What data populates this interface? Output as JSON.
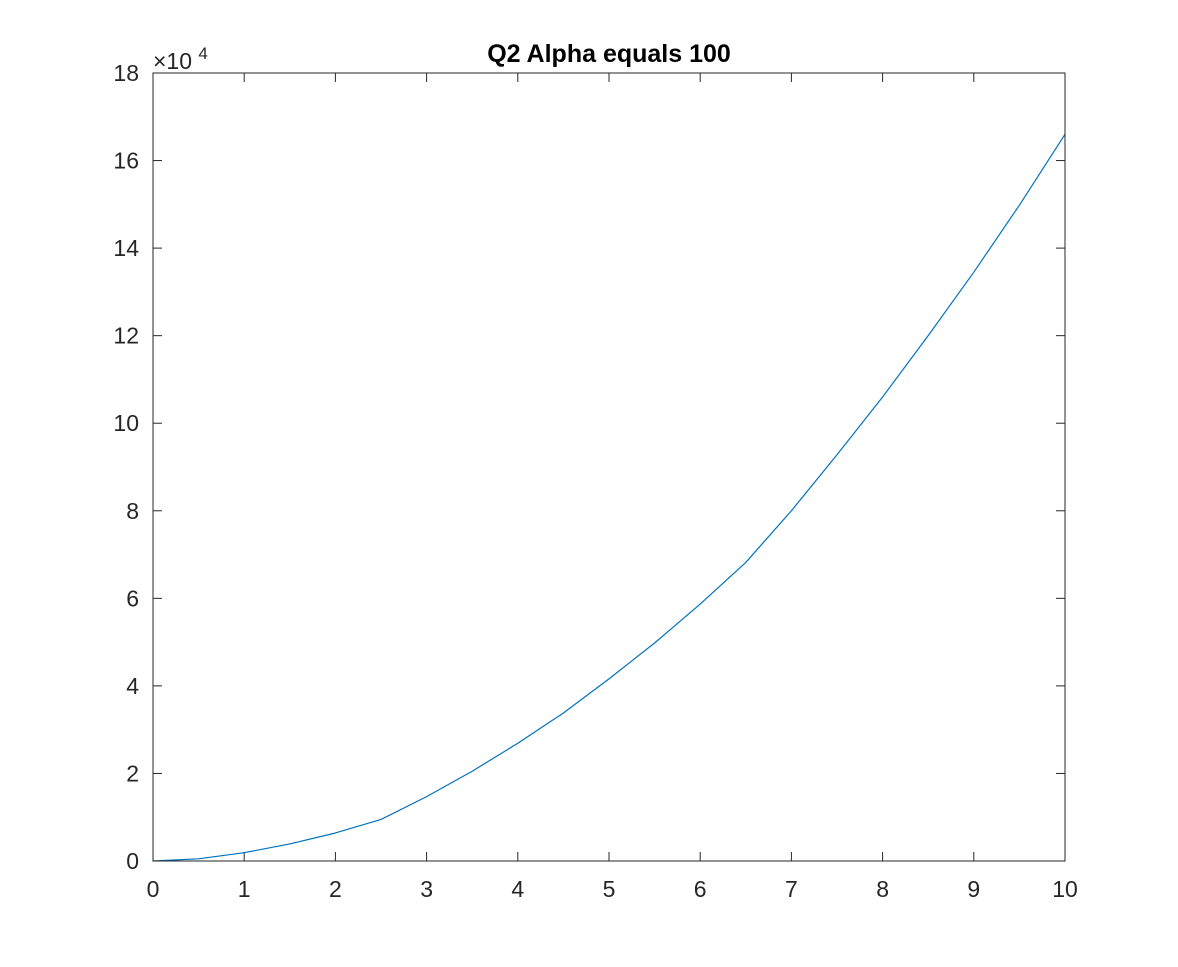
{
  "chart_data": {
    "type": "line",
    "title": "Q2 Alpha equals 100",
    "xlabel": "",
    "ylabel": "",
    "xlim": [
      0,
      10
    ],
    "ylim": [
      0,
      180000
    ],
    "x_ticks": [
      0,
      1,
      2,
      3,
      4,
      5,
      6,
      7,
      8,
      9,
      10
    ],
    "y_ticks": [
      0,
      20000,
      40000,
      60000,
      80000,
      100000,
      120000,
      140000,
      160000,
      180000
    ],
    "x_tick_labels": [
      "0",
      "1",
      "2",
      "3",
      "4",
      "5",
      "6",
      "7",
      "8",
      "9",
      "10"
    ],
    "y_tick_labels": [
      "0",
      "2",
      "4",
      "6",
      "8",
      "10",
      "12",
      "14",
      "16",
      "18"
    ],
    "y_multiplier": {
      "prefix": "×10",
      "exponent": "4"
    },
    "grid": false,
    "legend": "none",
    "series": [
      {
        "color": "#0072bd",
        "x": [
          0,
          0.5,
          1,
          1.5,
          2,
          2.5,
          3,
          3.5,
          4,
          4.5,
          5,
          5.5,
          6,
          6.5,
          7,
          7.5,
          8,
          8.5,
          9,
          9.5,
          10
        ],
        "values": [
          0,
          500,
          1900,
          3900,
          6400,
          9500,
          14700,
          20500,
          26900,
          33800,
          41600,
          49800,
          58700,
          68200,
          80000,
          92800,
          106000,
          120000,
          134500,
          149800,
          166000
        ]
      }
    ]
  }
}
